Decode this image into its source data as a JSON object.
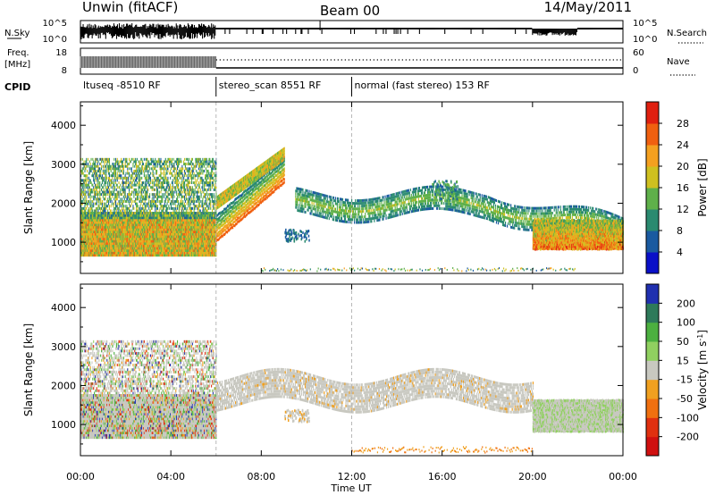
{
  "header": {
    "station": "Unwin (fitACF)",
    "beam": "Beam 00",
    "date": "14/May/2011"
  },
  "meta_panels": {
    "nsky_label": "N.Sky",
    "nsearch_label": "N.Search",
    "freq_label_1": "Freq.",
    "freq_label_2": "[MHz]",
    "nave_label": "Nave",
    "cpid_label": "CPID",
    "nsky_ticks": [
      "10^5",
      "10^0"
    ],
    "nsearch_ticks": [
      "10^5",
      "10^0"
    ],
    "freq_ticks": [
      "18",
      "8"
    ],
    "nave_ticks": [
      "60",
      "0"
    ],
    "cpid_segments": [
      {
        "label": "ltuseq -8510 RF",
        "start_h": 0,
        "end_h": 6
      },
      {
        "label": "stereo_scan 8551 RF",
        "start_h": 6,
        "end_h": 12
      },
      {
        "label": "normal (fast stereo) 153 RF",
        "start_h": 12,
        "end_h": 24
      }
    ]
  },
  "chart_data": [
    {
      "type": "heatmap",
      "ylabel": "Slant Range [km]",
      "xlabel": "Time UT",
      "x_ticks": [
        "00:00",
        "04:00",
        "08:00",
        "12:00",
        "16:00",
        "20:00",
        "00:00"
      ],
      "x_tick_hours": [
        0,
        4,
        8,
        12,
        16,
        20,
        24
      ],
      "xlim": [
        0,
        24
      ],
      "y_ticks": [
        1000,
        2000,
        3000,
        4000
      ],
      "ylim": [
        200,
        4600
      ],
      "colorbar": {
        "label": "Power [dB]",
        "ticks": [
          4,
          8,
          12,
          16,
          20,
          24,
          28
        ],
        "colors": [
          "#0a10c8",
          "#1a5aa0",
          "#2a8a70",
          "#5fb04a",
          "#cfc020",
          "#f4a020",
          "#f06010",
          "#e02010"
        ]
      },
      "echo_bands": [
        {
          "start_h": 0,
          "end_h": 6,
          "range_km": [
            700,
            3200
          ],
          "power_db": 20
        },
        {
          "start_h": 6,
          "end_h": 9,
          "range_km": [
            1000,
            3200
          ],
          "power_db": 20
        },
        {
          "start_h": 9.5,
          "end_h": 24,
          "range_km": [
            1300,
            2600
          ],
          "power_db": 10
        },
        {
          "start_h": 20,
          "end_h": 24,
          "range_km": [
            800,
            1600
          ],
          "power_db": 26
        }
      ]
    },
    {
      "type": "heatmap",
      "ylabel": "Slant Range [km]",
      "xlabel": "Time UT",
      "x_ticks": [
        "00:00",
        "04:00",
        "08:00",
        "12:00",
        "16:00",
        "20:00",
        "00:00"
      ],
      "x_tick_hours": [
        0,
        4,
        8,
        12,
        16,
        20,
        24
      ],
      "xlim": [
        0,
        24
      ],
      "y_ticks": [
        1000,
        2000,
        3000,
        4000
      ],
      "ylim": [
        200,
        4600
      ],
      "colorbar": {
        "label": "Velocity [m s",
        "label_sup": "-1",
        "label_end": "]",
        "ticks": [
          200,
          100,
          50,
          15,
          -15,
          -50,
          -100,
          -200
        ],
        "colors": [
          "#2030b0",
          "#2e7a5a",
          "#4cb040",
          "#90d060",
          "#c8c8c0",
          "#f0a020",
          "#f07010",
          "#e03010",
          "#d01010"
        ]
      },
      "echo_bands": [
        {
          "start_h": 0,
          "end_h": 6,
          "range_km": [
            700,
            3200
          ],
          "velocity": 0
        },
        {
          "start_h": 6,
          "end_h": 20,
          "range_km": [
            1000,
            2600
          ],
          "velocity": 0
        },
        {
          "start_h": 20,
          "end_h": 24,
          "range_km": [
            900,
            2400
          ],
          "velocity": 30
        }
      ]
    }
  ],
  "colors": {
    "axis": "#000000",
    "guide": "#b8b8b8"
  }
}
